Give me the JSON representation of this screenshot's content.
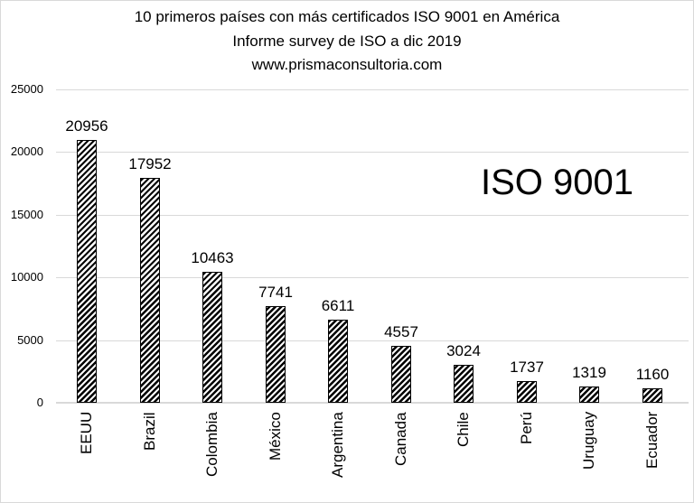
{
  "chart_data": {
    "type": "bar",
    "title": "10 primeros países con más certificados ISO 9001 en América",
    "subtitle": "Informe survey de ISO  a dic 2019",
    "source": "www.prismaconsultoria.com",
    "annotation": "ISO 9001",
    "categories": [
      "EEUU",
      "Brazil",
      "Colombia",
      "México",
      "Argentina",
      "Canada",
      "Chile",
      "Perú",
      "Uruguay",
      "Ecuador"
    ],
    "values": [
      20956,
      17952,
      10463,
      7741,
      6611,
      4557,
      3024,
      1737,
      1319,
      1160
    ],
    "xlabel": "",
    "ylabel": "",
    "ylim": [
      0,
      25000
    ],
    "yticks": [
      0,
      5000,
      10000,
      15000,
      20000,
      25000
    ],
    "grid": true,
    "legend": null,
    "bar_fill": "diagonal-hatch",
    "colors": {
      "bar": "#000000",
      "grid": "#d9d9d9",
      "background": "#ffffff"
    }
  },
  "header": {
    "line1": "10 primeros países con más certificados ISO 9001 en América",
    "line2": "Informe survey de ISO  a dic 2019",
    "line3": "www.prismaconsultoria.com"
  }
}
